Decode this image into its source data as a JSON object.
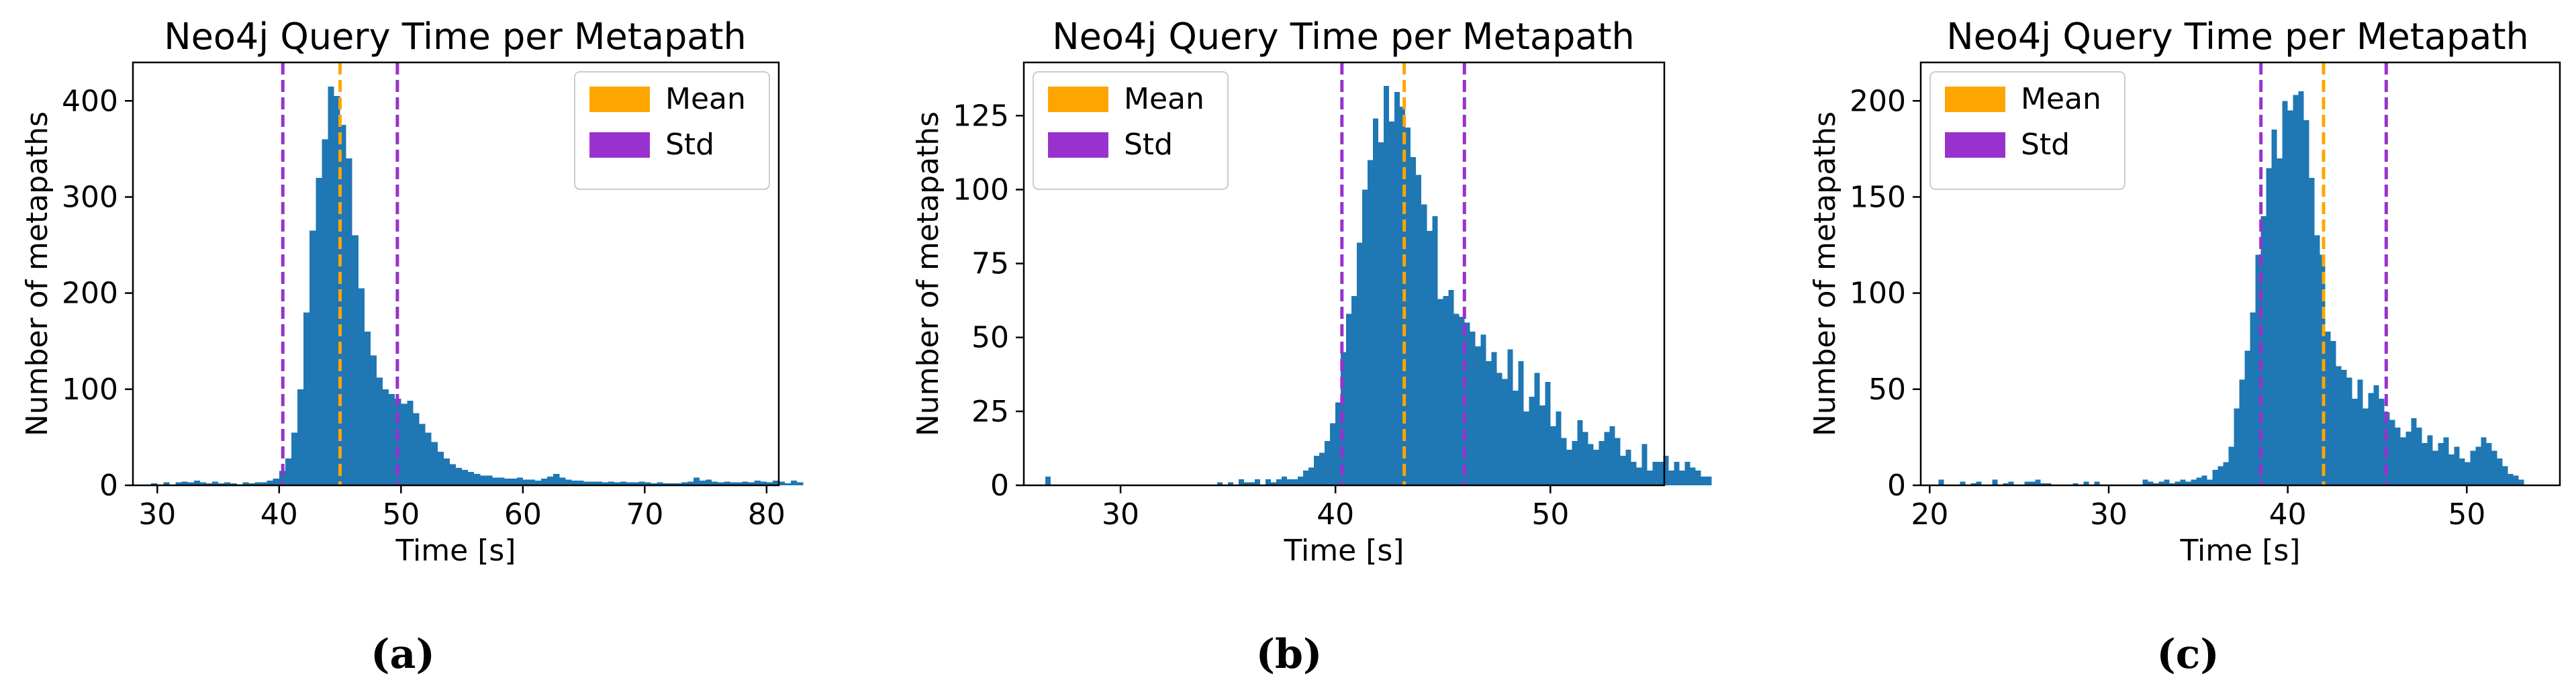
{
  "colors": {
    "bars": "#1f77b4",
    "mean": "#ffa500",
    "std": "#9932cc",
    "axis": "#000000"
  },
  "chart_data": [
    {
      "type": "bar",
      "caption": "(a)",
      "title": "Neo4j Query Time per Metapath",
      "xlabel": "Time [s]",
      "ylabel": "Number of metapaths",
      "xlim": [
        28,
        81
      ],
      "ylim": [
        0,
        440
      ],
      "xticks": [
        30,
        40,
        50,
        60,
        70,
        80
      ],
      "yticks": [
        0,
        100,
        200,
        300,
        400
      ],
      "grid": false,
      "legend_position": "top-right",
      "legend": [
        {
          "label": "Mean",
          "color": "#ffa500"
        },
        {
          "label": "Std",
          "color": "#9932cc"
        }
      ],
      "mean": 45.0,
      "std_lines": [
        40.3,
        49.7
      ],
      "bins": {
        "start": 29.5,
        "width": 0.5
      },
      "values": [
        2,
        0,
        3,
        0,
        3,
        4,
        3,
        5,
        3,
        2,
        4,
        2,
        3,
        2,
        1,
        3,
        2,
        3,
        3,
        5,
        7,
        15,
        28,
        55,
        100,
        180,
        265,
        320,
        360,
        415,
        405,
        375,
        340,
        260,
        205,
        160,
        135,
        112,
        100,
        95,
        90,
        85,
        88,
        75,
        64,
        55,
        45,
        35,
        28,
        22,
        18,
        16,
        14,
        12,
        10,
        10,
        8,
        8,
        7,
        7,
        8,
        6,
        6,
        5,
        7,
        9,
        12,
        8,
        6,
        5,
        5,
        4,
        4,
        4,
        3,
        4,
        3,
        4,
        3,
        3,
        4,
        3,
        2,
        3,
        2,
        2,
        2,
        3,
        4,
        8,
        5,
        6,
        4,
        3,
        4,
        3,
        3,
        4,
        3,
        5,
        4,
        3,
        5,
        4,
        2,
        5,
        3
      ]
    },
    {
      "type": "bar",
      "caption": "(b)",
      "title": "Neo4j Query Time per Metapath",
      "xlabel": "Time [s]",
      "ylabel": "Number of metapaths",
      "xlim": [
        25.5,
        55.3
      ],
      "ylim": [
        0,
        143
      ],
      "xticks": [
        30,
        40,
        50
      ],
      "yticks": [
        0,
        25,
        50,
        75,
        100,
        125
      ],
      "grid": false,
      "legend_position": "top-left",
      "legend": [
        {
          "label": "Mean",
          "color": "#ffa500"
        },
        {
          "label": "Std",
          "color": "#9932cc"
        }
      ],
      "mean": 43.2,
      "std_lines": [
        40.3,
        46.0
      ],
      "bins": {
        "start": 26.5,
        "width": 0.25
      },
      "values": [
        3,
        0,
        0,
        0,
        0,
        0,
        0,
        0,
        0,
        0,
        0,
        0,
        0,
        0,
        0,
        0,
        0,
        0,
        0,
        0,
        0,
        0,
        0,
        0,
        0,
        0,
        0,
        0,
        0,
        0,
        0,
        0,
        1,
        0,
        1,
        0,
        2,
        1,
        1,
        2,
        0,
        2,
        1,
        2,
        3,
        2,
        2,
        3,
        5,
        6,
        10,
        11,
        15,
        21,
        28,
        45,
        58,
        64,
        82,
        100,
        110,
        124,
        116,
        135,
        123,
        133,
        128,
        121,
        111,
        105,
        95,
        86,
        91,
        63,
        64,
        66,
        58,
        57,
        55,
        52,
        47,
        51,
        42,
        45,
        38,
        36,
        46,
        32,
        42,
        25,
        30,
        38,
        27,
        35,
        20,
        25,
        16,
        12,
        15,
        22,
        18,
        14,
        12,
        15,
        18,
        20,
        16,
        10,
        12,
        8,
        6,
        14,
        5,
        8,
        8,
        10,
        5,
        8,
        5,
        8,
        6,
        5,
        3,
        3
      ]
    },
    {
      "type": "bar",
      "caption": "(c)",
      "title": "Neo4j Query Time per Metapath",
      "xlabel": "Time [s]",
      "ylabel": "Number of metapaths",
      "xlim": [
        19.5,
        55.2
      ],
      "ylim": [
        0,
        220
      ],
      "xticks": [
        20,
        30,
        40,
        50
      ],
      "yticks": [
        0,
        50,
        100,
        150,
        200
      ],
      "grid": false,
      "legend_position": "top-left",
      "legend": [
        {
          "label": "Mean",
          "color": "#ffa500"
        },
        {
          "label": "Std",
          "color": "#9932cc"
        }
      ],
      "mean": 42.0,
      "std_lines": [
        38.5,
        45.5
      ],
      "bins": {
        "start": 20.5,
        "width": 0.3
      },
      "values": [
        3,
        0,
        0,
        0,
        2,
        0,
        1,
        2,
        0,
        0,
        3,
        0,
        1,
        2,
        0,
        0,
        2,
        2,
        3,
        1,
        1,
        0,
        0,
        0,
        0,
        1,
        0,
        2,
        0,
        2,
        0,
        0,
        0,
        0,
        0,
        0,
        0,
        0,
        3,
        2,
        1,
        2,
        3,
        1,
        2,
        3,
        2,
        3,
        4,
        5,
        3,
        8,
        10,
        12,
        20,
        40,
        55,
        70,
        90,
        120,
        140,
        165,
        185,
        170,
        200,
        195,
        203,
        205,
        190,
        160,
        130,
        120,
        80,
        75,
        62,
        60,
        56,
        45,
        55,
        40,
        48,
        52,
        45,
        38,
        34,
        30,
        25,
        28,
        35,
        30,
        22,
        26,
        18,
        22,
        25,
        16,
        20,
        14,
        12,
        18,
        20,
        25,
        22,
        18,
        14,
        10,
        6,
        5,
        3
      ]
    }
  ]
}
